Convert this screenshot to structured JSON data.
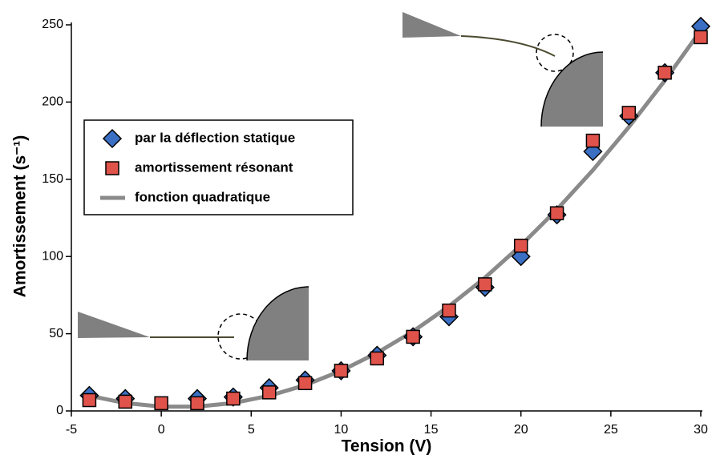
{
  "chart_data": {
    "type": "scatter",
    "xlabel": "Tension (V)",
    "ylabel": "Amortissement (s⁻¹)",
    "xlim": [
      -5,
      30
    ],
    "xticks": [
      -5,
      0,
      5,
      10,
      15,
      20,
      25,
      30
    ],
    "ylim": [
      0,
      250
    ],
    "yticks": [
      0,
      50,
      100,
      150,
      200,
      250
    ],
    "series": [
      {
        "name": "par la déflection statique",
        "color": "#3a6fc4",
        "marker": "diamond",
        "x": [
          -4,
          -2,
          2,
          4,
          6,
          8,
          10,
          12,
          14,
          16,
          18,
          20,
          22,
          24,
          26,
          28,
          30
        ],
        "values": [
          10,
          8,
          8,
          9,
          15,
          20,
          26,
          36,
          48,
          61,
          80,
          100,
          127,
          168,
          191,
          219,
          249
        ]
      },
      {
        "name": "amortissement résonant",
        "color": "#e0534b",
        "marker": "square",
        "x": [
          -4,
          -2,
          0,
          2,
          4,
          6,
          8,
          10,
          12,
          14,
          16,
          18,
          20,
          22,
          24,
          26,
          28,
          30
        ],
        "values": [
          7,
          6,
          5,
          5,
          8,
          12,
          18,
          26,
          34,
          48,
          65,
          82,
          107,
          128,
          175,
          193,
          219,
          242
        ]
      },
      {
        "name": "fonction quadratique",
        "color": "#8a8a8a",
        "marker": "line",
        "x": [
          -4,
          -2,
          0,
          2,
          4,
          6,
          8,
          10,
          12,
          14,
          16,
          18,
          20,
          22,
          24,
          26,
          28,
          30
        ],
        "values": [
          9.8,
          5.1,
          2.8,
          2.8,
          5.1,
          9.8,
          16.7,
          26.0,
          37.6,
          51.5,
          67.8,
          86.3,
          107.2,
          130.4,
          155.9,
          183.8,
          213.9,
          246.4
        ]
      }
    ]
  }
}
